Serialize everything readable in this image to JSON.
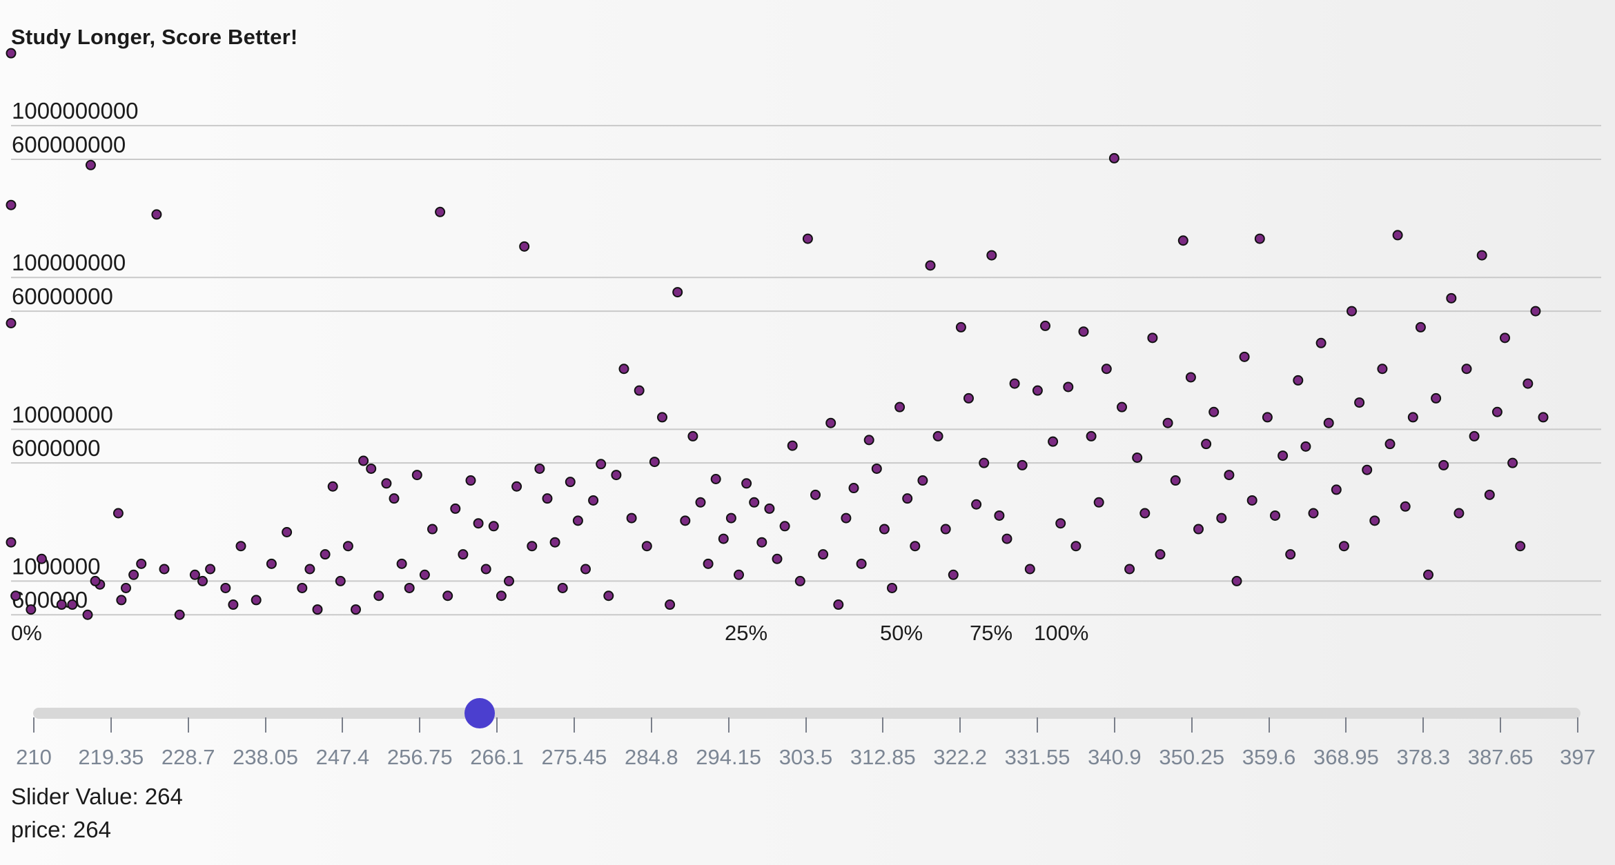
{
  "chart_data": {
    "type": "scatter",
    "title": "Study Longer, Score Better!",
    "y_scale": "log",
    "y_tick_labels": [
      "1000000000",
      "600000000",
      "100000000",
      "60000000",
      "10000000",
      "6000000",
      "1000000",
      "600000"
    ],
    "y_tick_values": [
      1000000000,
      600000000,
      100000000,
      60000000,
      10000000,
      6000000,
      1000000,
      600000
    ],
    "x_tick_labels": [
      "0%",
      "25%",
      "50%",
      "75%",
      "100%"
    ],
    "x_tick_values": [
      0,
      0.25,
      0.5,
      0.75,
      1.0
    ],
    "point_color": "#7b2a82",
    "points": [
      [
        0.0,
        3000000000
      ],
      [
        0.0,
        300000000
      ],
      [
        0.0,
        50000000
      ],
      [
        0.0,
        1800000
      ],
      [
        0.003,
        800000
      ],
      [
        0.013,
        650000
      ],
      [
        0.02,
        1400000
      ],
      [
        0.033,
        700000
      ],
      [
        0.04,
        700000
      ],
      [
        0.05,
        600000
      ],
      [
        0.058,
        950000
      ],
      [
        0.052,
        550000000
      ],
      [
        0.055,
        1000000
      ],
      [
        0.07,
        2800000
      ],
      [
        0.072,
        750000
      ],
      [
        0.075,
        900000
      ],
      [
        0.08,
        1100000
      ],
      [
        0.085,
        1300000
      ],
      [
        0.095,
        260000000
      ],
      [
        0.1,
        1200000
      ],
      [
        0.11,
        600000
      ],
      [
        0.12,
        1100000
      ],
      [
        0.125,
        1000000
      ],
      [
        0.13,
        1200000
      ],
      [
        0.14,
        900000
      ],
      [
        0.145,
        700000
      ],
      [
        0.15,
        1700000
      ],
      [
        0.16,
        750000
      ],
      [
        0.17,
        1300000
      ],
      [
        0.18,
        2100000
      ],
      [
        0.19,
        900000
      ],
      [
        0.195,
        1200000
      ],
      [
        0.2,
        650000
      ],
      [
        0.205,
        1500000
      ],
      [
        0.21,
        4200000
      ],
      [
        0.215,
        1000000
      ],
      [
        0.22,
        1700000
      ],
      [
        0.225,
        650000
      ],
      [
        0.23,
        6200000
      ],
      [
        0.235,
        5500000
      ],
      [
        0.24,
        800000
      ],
      [
        0.245,
        4400000
      ],
      [
        0.25,
        3500000
      ],
      [
        0.255,
        1300000
      ],
      [
        0.26,
        900000
      ],
      [
        0.265,
        5000000
      ],
      [
        0.27,
        1100000
      ],
      [
        0.275,
        2200000
      ],
      [
        0.28,
        270000000
      ],
      [
        0.285,
        800000
      ],
      [
        0.29,
        3000000
      ],
      [
        0.295,
        1500000
      ],
      [
        0.3,
        4600000
      ],
      [
        0.305,
        2400000
      ],
      [
        0.31,
        1200000
      ],
      [
        0.315,
        2300000
      ],
      [
        0.32,
        800000
      ],
      [
        0.325,
        1000000
      ],
      [
        0.33,
        4200000
      ],
      [
        0.335,
        160000000
      ],
      [
        0.34,
        1700000
      ],
      [
        0.345,
        5500000
      ],
      [
        0.35,
        3500000
      ],
      [
        0.355,
        1800000
      ],
      [
        0.36,
        900000
      ],
      [
        0.365,
        4500000
      ],
      [
        0.37,
        2500000
      ],
      [
        0.375,
        1200000
      ],
      [
        0.38,
        3400000
      ],
      [
        0.385,
        5900000
      ],
      [
        0.39,
        800000
      ],
      [
        0.395,
        5000000
      ],
      [
        0.4,
        25000000
      ],
      [
        0.405,
        2600000
      ],
      [
        0.41,
        18000000
      ],
      [
        0.415,
        1700000
      ],
      [
        0.42,
        6100000
      ],
      [
        0.425,
        12000000
      ],
      [
        0.43,
        700000
      ],
      [
        0.435,
        80000000
      ],
      [
        0.44,
        2500000
      ],
      [
        0.445,
        9000000
      ],
      [
        0.45,
        3300000
      ],
      [
        0.455,
        1300000
      ],
      [
        0.46,
        4700000
      ],
      [
        0.465,
        1900000
      ],
      [
        0.47,
        2600000
      ],
      [
        0.475,
        1100000
      ],
      [
        0.48,
        4400000
      ],
      [
        0.485,
        3300000
      ],
      [
        0.49,
        1800000
      ],
      [
        0.495,
        3000000
      ],
      [
        0.5,
        1400000
      ],
      [
        0.505,
        2300000
      ],
      [
        0.51,
        7800000
      ],
      [
        0.515,
        1000000
      ],
      [
        0.52,
        180000000
      ],
      [
        0.525,
        3700000
      ],
      [
        0.53,
        1500000
      ],
      [
        0.535,
        11000000
      ],
      [
        0.54,
        700000
      ],
      [
        0.545,
        2600000
      ],
      [
        0.55,
        4100000
      ],
      [
        0.555,
        1300000
      ],
      [
        0.56,
        8500000
      ],
      [
        0.565,
        5500000
      ],
      [
        0.57,
        2200000
      ],
      [
        0.575,
        900000
      ],
      [
        0.58,
        14000000
      ],
      [
        0.585,
        3500000
      ],
      [
        0.59,
        1700000
      ],
      [
        0.595,
        4600000
      ],
      [
        0.6,
        120000000
      ],
      [
        0.605,
        9000000
      ],
      [
        0.61,
        2200000
      ],
      [
        0.615,
        1100000
      ],
      [
        0.62,
        47000000
      ],
      [
        0.625,
        16000000
      ],
      [
        0.63,
        3200000
      ],
      [
        0.635,
        6000000
      ],
      [
        0.64,
        140000000
      ],
      [
        0.645,
        2700000
      ],
      [
        0.65,
        1900000
      ],
      [
        0.655,
        20000000
      ],
      [
        0.66,
        5800000
      ],
      [
        0.665,
        1200000
      ],
      [
        0.67,
        18000000
      ],
      [
        0.675,
        48000000
      ],
      [
        0.68,
        8300000
      ],
      [
        0.685,
        2400000
      ],
      [
        0.69,
        19000000
      ],
      [
        0.695,
        1700000
      ],
      [
        0.7,
        44000000
      ],
      [
        0.705,
        9000000
      ],
      [
        0.71,
        3300000
      ],
      [
        0.715,
        25000000
      ],
      [
        0.72,
        610000000
      ],
      [
        0.725,
        14000000
      ],
      [
        0.73,
        1200000
      ],
      [
        0.735,
        6500000
      ],
      [
        0.74,
        2800000
      ],
      [
        0.745,
        40000000
      ],
      [
        0.75,
        1500000
      ],
      [
        0.755,
        11000000
      ],
      [
        0.76,
        4600000
      ],
      [
        0.765,
        175000000
      ],
      [
        0.77,
        22000000
      ],
      [
        0.775,
        2200000
      ],
      [
        0.78,
        8000000
      ],
      [
        0.785,
        13000000
      ],
      [
        0.79,
        2600000
      ],
      [
        0.795,
        5000000
      ],
      [
        0.8,
        1000000
      ],
      [
        0.805,
        30000000
      ],
      [
        0.81,
        3400000
      ],
      [
        0.815,
        180000000
      ],
      [
        0.82,
        12000000
      ],
      [
        0.825,
        2700000
      ],
      [
        0.83,
        6700000
      ],
      [
        0.835,
        1500000
      ],
      [
        0.84,
        21000000
      ],
      [
        0.845,
        7700000
      ],
      [
        0.85,
        2800000
      ],
      [
        0.855,
        37000000
      ],
      [
        0.86,
        11000000
      ],
      [
        0.865,
        4000000
      ],
      [
        0.87,
        1700000
      ],
      [
        0.875,
        60000000
      ],
      [
        0.88,
        15000000
      ],
      [
        0.885,
        5400000
      ],
      [
        0.89,
        2500000
      ],
      [
        0.895,
        25000000
      ],
      [
        0.9,
        8000000
      ],
      [
        0.905,
        190000000
      ],
      [
        0.91,
        3100000
      ],
      [
        0.915,
        12000000
      ],
      [
        0.92,
        47000000
      ],
      [
        0.925,
        1100000
      ],
      [
        0.93,
        16000000
      ],
      [
        0.935,
        5800000
      ],
      [
        0.94,
        73000000
      ],
      [
        0.945,
        2800000
      ],
      [
        0.95,
        25000000
      ],
      [
        0.955,
        9000000
      ],
      [
        0.96,
        140000000
      ],
      [
        0.965,
        3700000
      ],
      [
        0.97,
        13000000
      ],
      [
        0.975,
        40000000
      ],
      [
        0.98,
        6000000
      ],
      [
        0.985,
        1700000
      ],
      [
        0.99,
        20000000
      ],
      [
        0.995,
        60000000
      ],
      [
        1.0,
        12000000
      ]
    ]
  },
  "slider": {
    "min": 210,
    "max": 397,
    "value": 264,
    "accent_color": "#4b3fcf",
    "tick_labels": [
      "210",
      "219.35",
      "228.7",
      "238.05",
      "247.4",
      "256.75",
      "266.1",
      "275.45",
      "284.8",
      "294.15",
      "303.5",
      "312.85",
      "322.2",
      "331.55",
      "340.9",
      "350.25",
      "359.6",
      "368.95",
      "378.3",
      "387.65",
      "397"
    ],
    "value_text": "Slider Value: 264",
    "price_text": "price: 264"
  }
}
